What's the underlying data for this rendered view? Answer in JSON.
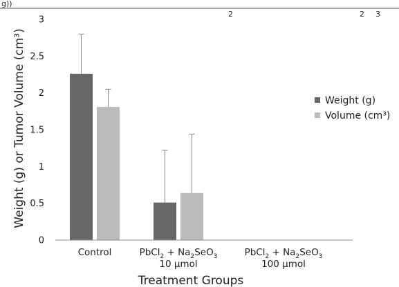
{
  "header_fragments": {
    "left": "g))",
    "sub_2": "2",
    "sub_2b": "2",
    "sub_3": "3"
  },
  "chart_data": {
    "type": "bar",
    "categories": [
      {
        "line1_parts": [
          "Control"
        ],
        "line2": ""
      },
      {
        "line1_parts": [
          "PbCl",
          "2",
          " + Na",
          "2",
          "SeO",
          "3"
        ],
        "line2": "10 µmol"
      },
      {
        "line1_parts": [
          "PbCl",
          "2",
          " + Na",
          "2",
          "SeO",
          "3"
        ],
        "line2": "100 µmol"
      }
    ],
    "series": [
      {
        "name": "Weight (g)",
        "color": "#666666",
        "values": [
          2.26,
          0.51,
          null
        ],
        "error": [
          0.54,
          0.71,
          null
        ]
      },
      {
        "name": "Volume (cm³)",
        "color": "#bbbbbb",
        "values": [
          1.81,
          0.64,
          null
        ],
        "error": [
          0.24,
          0.8,
          null
        ]
      }
    ],
    "xlabel": "Treatment Groups",
    "ylabel": "Weight (g) or Tumor Volume (cm³)",
    "ylim": [
      0,
      3
    ],
    "yticks": [
      "0",
      "0.5",
      "1",
      "1.5",
      "2",
      "2.5",
      "3"
    ],
    "legend_position": "right",
    "grid": false
  }
}
